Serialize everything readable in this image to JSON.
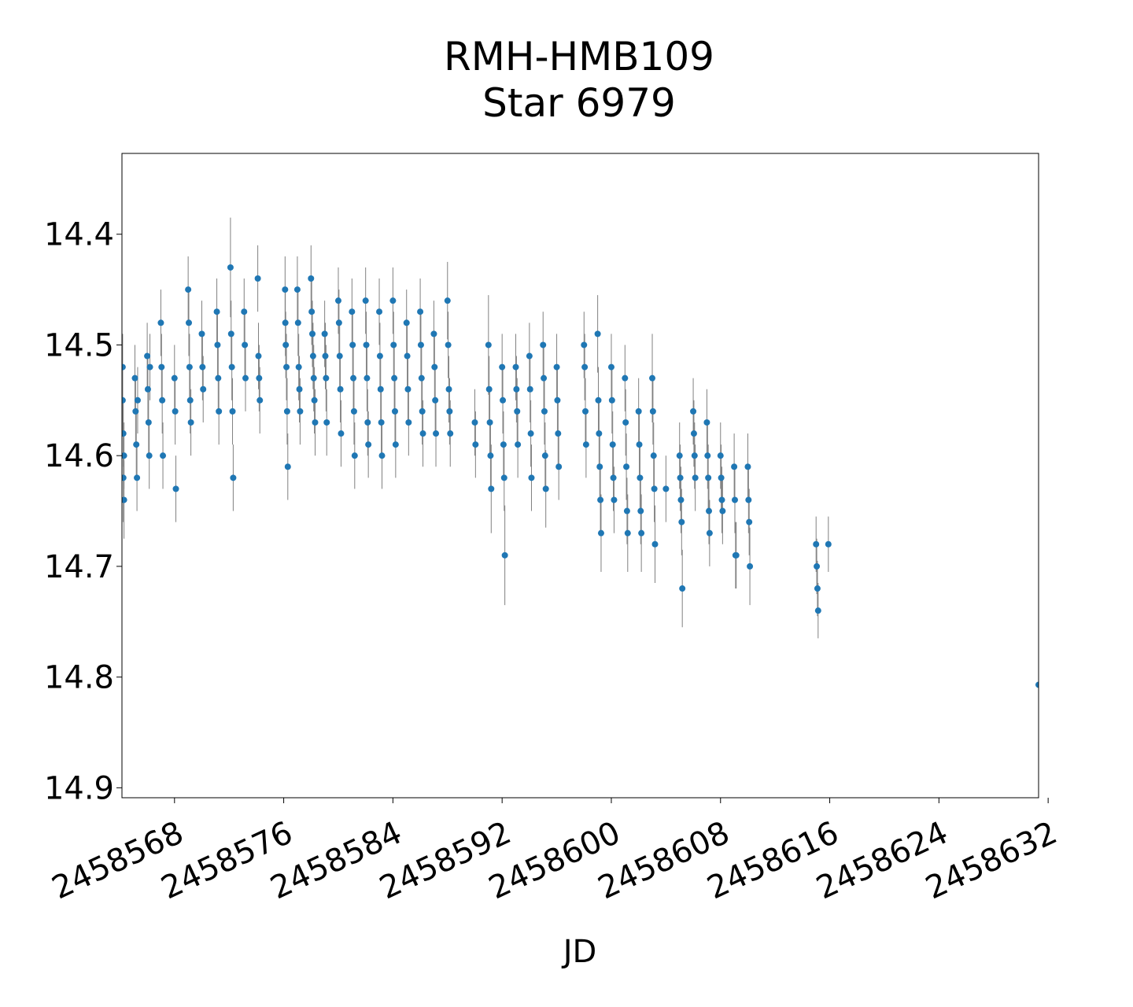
{
  "chart_data": {
    "type": "scatter",
    "title": [
      "RMH-HMB109",
      "Star 6979"
    ],
    "xlabel": "JD",
    "ylabel": "",
    "xlim": [
      2458564.15,
      2458631.3
    ],
    "ylim": [
      14.327,
      14.909
    ],
    "y_inverted": true,
    "grid": false,
    "x_ticks": [
      2458568,
      2458576,
      2458584,
      2458592,
      2458600,
      2458608,
      2458616,
      2458624,
      2458632
    ],
    "y_ticks": [
      "14.4",
      "14.5",
      "14.6",
      "14.7",
      "14.8",
      "14.9"
    ],
    "marker_color": "#1f77b4",
    "errorbar_color": "#808080",
    "series": [
      {
        "points": [
          [
            2458564.2,
            14.52,
            0.03
          ],
          [
            2458564.2,
            14.55,
            0.03
          ],
          [
            2458564.25,
            14.58,
            0.03
          ],
          [
            2458564.25,
            14.62,
            0.04
          ],
          [
            2458564.3,
            14.64,
            0.035
          ],
          [
            2458564.3,
            14.6,
            0.03
          ],
          [
            2458565.1,
            14.53,
            0.03
          ],
          [
            2458565.15,
            14.56,
            0.03
          ],
          [
            2458565.2,
            14.59,
            0.03
          ],
          [
            2458565.25,
            14.62,
            0.03
          ],
          [
            2458565.3,
            14.55,
            0.03
          ],
          [
            2458566.0,
            14.51,
            0.03
          ],
          [
            2458566.05,
            14.54,
            0.03
          ],
          [
            2458566.1,
            14.57,
            0.03
          ],
          [
            2458566.15,
            14.6,
            0.03
          ],
          [
            2458566.2,
            14.52,
            0.03
          ],
          [
            2458567.0,
            14.48,
            0.03
          ],
          [
            2458567.05,
            14.52,
            0.03
          ],
          [
            2458567.1,
            14.55,
            0.03
          ],
          [
            2458567.15,
            14.6,
            0.03
          ],
          [
            2458568.0,
            14.53,
            0.03
          ],
          [
            2458568.05,
            14.56,
            0.03
          ],
          [
            2458568.1,
            14.63,
            0.03
          ],
          [
            2458569.0,
            14.45,
            0.03
          ],
          [
            2458569.05,
            14.48,
            0.03
          ],
          [
            2458569.1,
            14.52,
            0.03
          ],
          [
            2458569.15,
            14.55,
            0.03
          ],
          [
            2458569.2,
            14.57,
            0.03
          ],
          [
            2458570.0,
            14.49,
            0.03
          ],
          [
            2458570.05,
            14.52,
            0.03
          ],
          [
            2458570.1,
            14.54,
            0.03
          ],
          [
            2458571.1,
            14.47,
            0.03
          ],
          [
            2458571.15,
            14.5,
            0.03
          ],
          [
            2458571.2,
            14.53,
            0.03
          ],
          [
            2458571.25,
            14.56,
            0.03
          ],
          [
            2458572.1,
            14.43,
            0.045
          ],
          [
            2458572.15,
            14.49,
            0.03
          ],
          [
            2458572.2,
            14.52,
            0.03
          ],
          [
            2458572.25,
            14.56,
            0.03
          ],
          [
            2458572.3,
            14.62,
            0.03
          ],
          [
            2458573.1,
            14.47,
            0.03
          ],
          [
            2458573.15,
            14.5,
            0.03
          ],
          [
            2458573.2,
            14.53,
            0.03
          ],
          [
            2458574.1,
            14.44,
            0.03
          ],
          [
            2458574.15,
            14.51,
            0.03
          ],
          [
            2458574.2,
            14.53,
            0.03
          ],
          [
            2458574.25,
            14.55,
            0.03
          ],
          [
            2458576.1,
            14.45,
            0.03
          ],
          [
            2458576.12,
            14.48,
            0.03
          ],
          [
            2458576.15,
            14.5,
            0.03
          ],
          [
            2458576.2,
            14.52,
            0.03
          ],
          [
            2458576.25,
            14.56,
            0.03
          ],
          [
            2458576.3,
            14.61,
            0.03
          ],
          [
            2458577.0,
            14.45,
            0.03
          ],
          [
            2458577.05,
            14.48,
            0.03
          ],
          [
            2458577.1,
            14.52,
            0.03
          ],
          [
            2458577.15,
            14.54,
            0.03
          ],
          [
            2458577.2,
            14.56,
            0.03
          ],
          [
            2458578.0,
            14.44,
            0.03
          ],
          [
            2458578.05,
            14.47,
            0.03
          ],
          [
            2458578.1,
            14.49,
            0.03
          ],
          [
            2458578.15,
            14.51,
            0.03
          ],
          [
            2458578.2,
            14.53,
            0.03
          ],
          [
            2458578.25,
            14.55,
            0.03
          ],
          [
            2458578.3,
            14.57,
            0.03
          ],
          [
            2458579.0,
            14.49,
            0.03
          ],
          [
            2458579.05,
            14.51,
            0.03
          ],
          [
            2458579.1,
            14.53,
            0.03
          ],
          [
            2458579.15,
            14.57,
            0.03
          ],
          [
            2458580.0,
            14.46,
            0.03
          ],
          [
            2458580.05,
            14.48,
            0.03
          ],
          [
            2458580.1,
            14.51,
            0.03
          ],
          [
            2458580.15,
            14.54,
            0.03
          ],
          [
            2458580.2,
            14.58,
            0.03
          ],
          [
            2458581.0,
            14.47,
            0.03
          ],
          [
            2458581.05,
            14.5,
            0.03
          ],
          [
            2458581.1,
            14.53,
            0.03
          ],
          [
            2458581.15,
            14.56,
            0.03
          ],
          [
            2458581.2,
            14.6,
            0.03
          ],
          [
            2458582.0,
            14.46,
            0.03
          ],
          [
            2458582.05,
            14.5,
            0.03
          ],
          [
            2458582.1,
            14.53,
            0.03
          ],
          [
            2458582.15,
            14.57,
            0.03
          ],
          [
            2458582.2,
            14.59,
            0.03
          ],
          [
            2458583.0,
            14.47,
            0.03
          ],
          [
            2458583.05,
            14.51,
            0.03
          ],
          [
            2458583.1,
            14.54,
            0.03
          ],
          [
            2458583.15,
            14.57,
            0.03
          ],
          [
            2458583.2,
            14.6,
            0.03
          ],
          [
            2458584.0,
            14.46,
            0.03
          ],
          [
            2458584.05,
            14.5,
            0.03
          ],
          [
            2458584.1,
            14.53,
            0.03
          ],
          [
            2458584.15,
            14.56,
            0.03
          ],
          [
            2458584.2,
            14.59,
            0.03
          ],
          [
            2458585.0,
            14.48,
            0.03
          ],
          [
            2458585.05,
            14.51,
            0.03
          ],
          [
            2458585.1,
            14.54,
            0.03
          ],
          [
            2458585.15,
            14.57,
            0.03
          ],
          [
            2458586.0,
            14.47,
            0.03
          ],
          [
            2458586.05,
            14.5,
            0.03
          ],
          [
            2458586.1,
            14.53,
            0.03
          ],
          [
            2458586.15,
            14.56,
            0.03
          ],
          [
            2458586.2,
            14.58,
            0.03
          ],
          [
            2458587.0,
            14.49,
            0.03
          ],
          [
            2458587.05,
            14.52,
            0.03
          ],
          [
            2458587.1,
            14.55,
            0.03
          ],
          [
            2458587.15,
            14.58,
            0.03
          ],
          [
            2458588.0,
            14.46,
            0.035
          ],
          [
            2458588.05,
            14.5,
            0.03
          ],
          [
            2458588.1,
            14.54,
            0.03
          ],
          [
            2458588.15,
            14.56,
            0.03
          ],
          [
            2458588.2,
            14.58,
            0.03
          ],
          [
            2458590.0,
            14.57,
            0.03
          ],
          [
            2458590.05,
            14.59,
            0.03
          ],
          [
            2458591.0,
            14.5,
            0.045
          ],
          [
            2458591.05,
            14.54,
            0.03
          ],
          [
            2458591.1,
            14.57,
            0.03
          ],
          [
            2458591.15,
            14.6,
            0.03
          ],
          [
            2458591.2,
            14.63,
            0.04
          ],
          [
            2458592.0,
            14.52,
            0.03
          ],
          [
            2458592.05,
            14.55,
            0.03
          ],
          [
            2458592.1,
            14.59,
            0.03
          ],
          [
            2458592.15,
            14.62,
            0.03
          ],
          [
            2458592.2,
            14.69,
            0.045
          ],
          [
            2458593.0,
            14.52,
            0.03
          ],
          [
            2458593.05,
            14.54,
            0.03
          ],
          [
            2458593.1,
            14.56,
            0.03
          ],
          [
            2458593.15,
            14.59,
            0.03
          ],
          [
            2458594.0,
            14.51,
            0.03
          ],
          [
            2458594.05,
            14.54,
            0.03
          ],
          [
            2458594.1,
            14.58,
            0.03
          ],
          [
            2458594.15,
            14.62,
            0.03
          ],
          [
            2458595.0,
            14.5,
            0.03
          ],
          [
            2458595.05,
            14.53,
            0.03
          ],
          [
            2458595.1,
            14.56,
            0.03
          ],
          [
            2458595.15,
            14.6,
            0.03
          ],
          [
            2458595.2,
            14.63,
            0.035
          ],
          [
            2458596.0,
            14.52,
            0.03
          ],
          [
            2458596.05,
            14.55,
            0.03
          ],
          [
            2458596.1,
            14.58,
            0.03
          ],
          [
            2458596.15,
            14.61,
            0.03
          ],
          [
            2458598.0,
            14.5,
            0.03
          ],
          [
            2458598.05,
            14.52,
            0.03
          ],
          [
            2458598.1,
            14.56,
            0.03
          ],
          [
            2458598.15,
            14.59,
            0.03
          ],
          [
            2458599.0,
            14.49,
            0.035
          ],
          [
            2458599.05,
            14.55,
            0.03
          ],
          [
            2458599.1,
            14.58,
            0.03
          ],
          [
            2458599.15,
            14.61,
            0.03
          ],
          [
            2458599.2,
            14.64,
            0.03
          ],
          [
            2458599.25,
            14.67,
            0.035
          ],
          [
            2458600.0,
            14.52,
            0.03
          ],
          [
            2458600.05,
            14.55,
            0.03
          ],
          [
            2458600.1,
            14.59,
            0.03
          ],
          [
            2458600.15,
            14.62,
            0.03
          ],
          [
            2458600.2,
            14.64,
            0.03
          ],
          [
            2458601.0,
            14.53,
            0.03
          ],
          [
            2458601.05,
            14.57,
            0.03
          ],
          [
            2458601.1,
            14.61,
            0.03
          ],
          [
            2458601.15,
            14.65,
            0.03
          ],
          [
            2458601.2,
            14.67,
            0.035
          ],
          [
            2458602.0,
            14.56,
            0.03
          ],
          [
            2458602.05,
            14.59,
            0.03
          ],
          [
            2458602.1,
            14.62,
            0.03
          ],
          [
            2458602.15,
            14.65,
            0.03
          ],
          [
            2458602.2,
            14.67,
            0.035
          ],
          [
            2458603.0,
            14.53,
            0.04
          ],
          [
            2458603.05,
            14.56,
            0.03
          ],
          [
            2458603.1,
            14.6,
            0.03
          ],
          [
            2458603.15,
            14.63,
            0.03
          ],
          [
            2458603.2,
            14.68,
            0.035
          ],
          [
            2458604.0,
            14.63,
            0.03
          ],
          [
            2458605.0,
            14.6,
            0.03
          ],
          [
            2458605.05,
            14.62,
            0.03
          ],
          [
            2458605.1,
            14.64,
            0.03
          ],
          [
            2458605.15,
            14.66,
            0.03
          ],
          [
            2458605.2,
            14.72,
            0.035
          ],
          [
            2458606.0,
            14.56,
            0.03
          ],
          [
            2458606.05,
            14.58,
            0.03
          ],
          [
            2458606.1,
            14.6,
            0.03
          ],
          [
            2458606.15,
            14.62,
            0.03
          ],
          [
            2458607.0,
            14.57,
            0.03
          ],
          [
            2458607.05,
            14.6,
            0.03
          ],
          [
            2458607.1,
            14.62,
            0.03
          ],
          [
            2458607.15,
            14.65,
            0.03
          ],
          [
            2458607.2,
            14.67,
            0.03
          ],
          [
            2458608.0,
            14.6,
            0.03
          ],
          [
            2458608.05,
            14.62,
            0.03
          ],
          [
            2458608.1,
            14.64,
            0.03
          ],
          [
            2458608.15,
            14.65,
            0.03
          ],
          [
            2458609.0,
            14.61,
            0.03
          ],
          [
            2458609.05,
            14.64,
            0.03
          ],
          [
            2458609.1,
            14.69,
            0.03
          ],
          [
            2458609.15,
            14.69,
            0.03
          ],
          [
            2458610.0,
            14.61,
            0.03
          ],
          [
            2458610.05,
            14.64,
            0.03
          ],
          [
            2458610.1,
            14.66,
            0.03
          ],
          [
            2458610.15,
            14.7,
            0.035
          ],
          [
            2458615.0,
            14.68,
            0.025
          ],
          [
            2458615.05,
            14.7,
            0.025
          ],
          [
            2458615.1,
            14.72,
            0.025
          ],
          [
            2458615.15,
            14.74,
            0.025
          ],
          [
            2458615.9,
            14.68,
            0.025
          ],
          [
            2458631.3,
            14.807,
            0.0
          ]
        ]
      }
    ]
  }
}
